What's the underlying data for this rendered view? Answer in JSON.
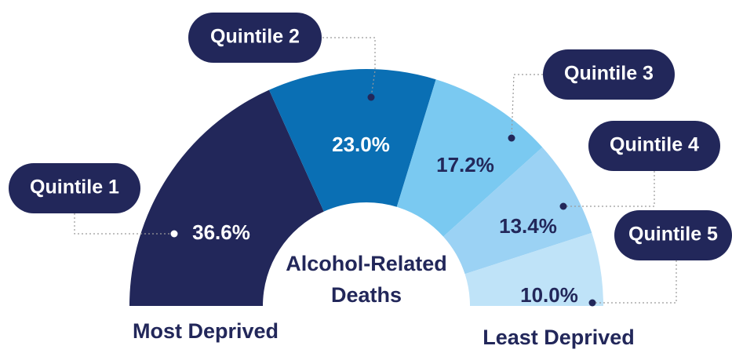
{
  "chart_data": {
    "type": "half-donut",
    "categories": [
      "Quintile 1",
      "Quintile 2",
      "Quintile 3",
      "Quintile 4",
      "Quintile 5"
    ],
    "values": [
      36.6,
      23.0,
      17.2,
      13.4,
      10.0
    ],
    "value_labels": [
      "36.6%",
      "23.0%",
      "17.2%",
      "13.4%",
      "10.0%"
    ],
    "colors": [
      "#22275a",
      "#0a6fb4",
      "#7ac9f1",
      "#9bd2f4",
      "#bfe3f8"
    ],
    "center_label": [
      "Alcohol-Related",
      "Deaths"
    ],
    "left_label": "Most Deprived",
    "right_label": "Least Deprived"
  }
}
